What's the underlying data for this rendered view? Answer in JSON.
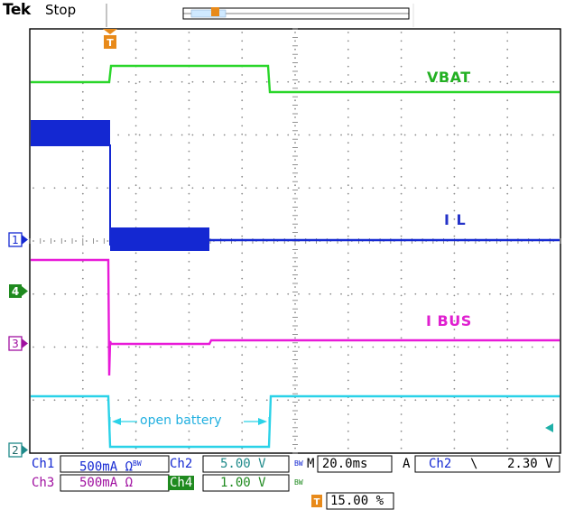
{
  "header": {
    "brand": "Tek",
    "status": "Stop"
  },
  "markers": {
    "trigger_glyph": "T",
    "trigger_color": "#e88a1a"
  },
  "traces": [
    {
      "id": "VBAT",
      "label": "VBAT",
      "color": "#2ad62a",
      "channel": "2"
    },
    {
      "id": "IL",
      "label": "I L",
      "color": "#1428d2",
      "channel": "1"
    },
    {
      "id": "IBUS",
      "label": "I BUS",
      "color": "#e81ad8",
      "channel": "3"
    },
    {
      "id": "OPEN",
      "label": "",
      "color": "#2ad2e8",
      "channel": "2"
    }
  ],
  "annotation": {
    "text": "open battery"
  },
  "readout": {
    "ch1_name": "Ch1",
    "ch1_value": "500mA",
    "ch2_name": "Ch2",
    "ch2_value": "5.00 V",
    "ch3_name": "Ch3",
    "ch3_value": "500mA",
    "ch4_name": "Ch4",
    "ch4_value": "1.00 V",
    "timebase": "M 20.0ms",
    "trigger_mode": "A",
    "trigger_source": "Ch2",
    "trigger_slope": "\\",
    "trigger_level": "2.30 V",
    "trigger_pos": "15.00 %"
  },
  "colors": {
    "grid": "#b4b4b4",
    "frame": "#000000",
    "ch1": "#1428d2",
    "ch2": "#2ad62a",
    "ch3": "#e81ad8",
    "ch4": "#1f8a1f",
    "cyan": "#2ad2e8"
  }
}
